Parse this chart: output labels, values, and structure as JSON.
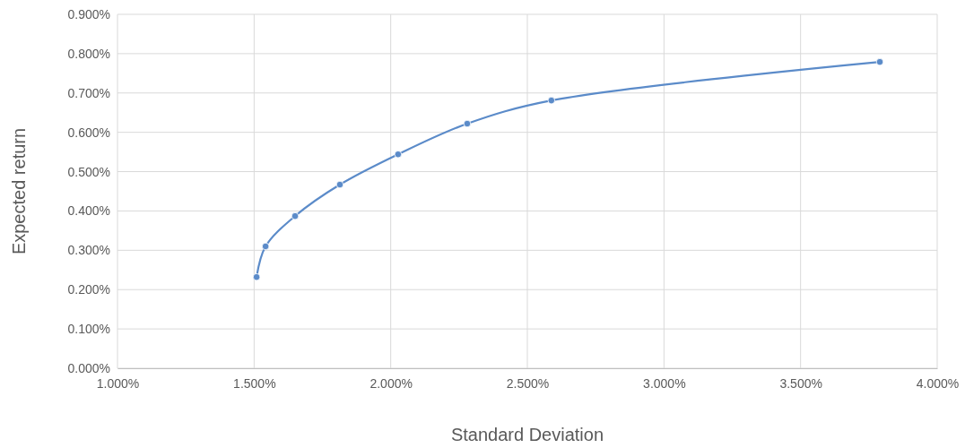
{
  "chart_data": {
    "type": "line",
    "xlabel": "Standard Deviation",
    "ylabel": "Expected return",
    "x": [
      1.509,
      1.542,
      1.65,
      1.814,
      2.027,
      2.28,
      2.588,
      3.79
    ],
    "series": [
      {
        "color": "#5b8bc9",
        "values": [
          0.232,
          0.31,
          0.387,
          0.467,
          0.544,
          0.622,
          0.681,
          0.779
        ]
      }
    ],
    "xlim": [
      1,
      4
    ],
    "xticks": [
      {
        "value": 1,
        "label": "1.000%"
      },
      {
        "value": 1.5,
        "label": "1.500%"
      },
      {
        "value": 2,
        "label": "2.000%"
      },
      {
        "value": 2.5,
        "label": "2.500%"
      },
      {
        "value": 3,
        "label": "3.000%"
      },
      {
        "value": 3.5,
        "label": "3.500%"
      },
      {
        "value": 4,
        "label": "4.000%"
      }
    ],
    "ylim": [
      0,
      0.9
    ],
    "yticks": [
      {
        "value": 0,
        "label": "0.000%"
      },
      {
        "value": 0.1,
        "label": "0.100%"
      },
      {
        "value": 0.2,
        "label": "0.200%"
      },
      {
        "value": 0.3,
        "label": "0.300%"
      },
      {
        "value": 0.4,
        "label": "0.400%"
      },
      {
        "value": 0.5,
        "label": "0.500%"
      },
      {
        "value": 0.6,
        "label": "0.600%"
      },
      {
        "value": 0.7,
        "label": "0.700%"
      },
      {
        "value": 0.8,
        "label": "0.800%"
      },
      {
        "value": 0.9,
        "label": "0.900%"
      }
    ],
    "grid": true,
    "marker": "circle",
    "line_style": "solid"
  }
}
